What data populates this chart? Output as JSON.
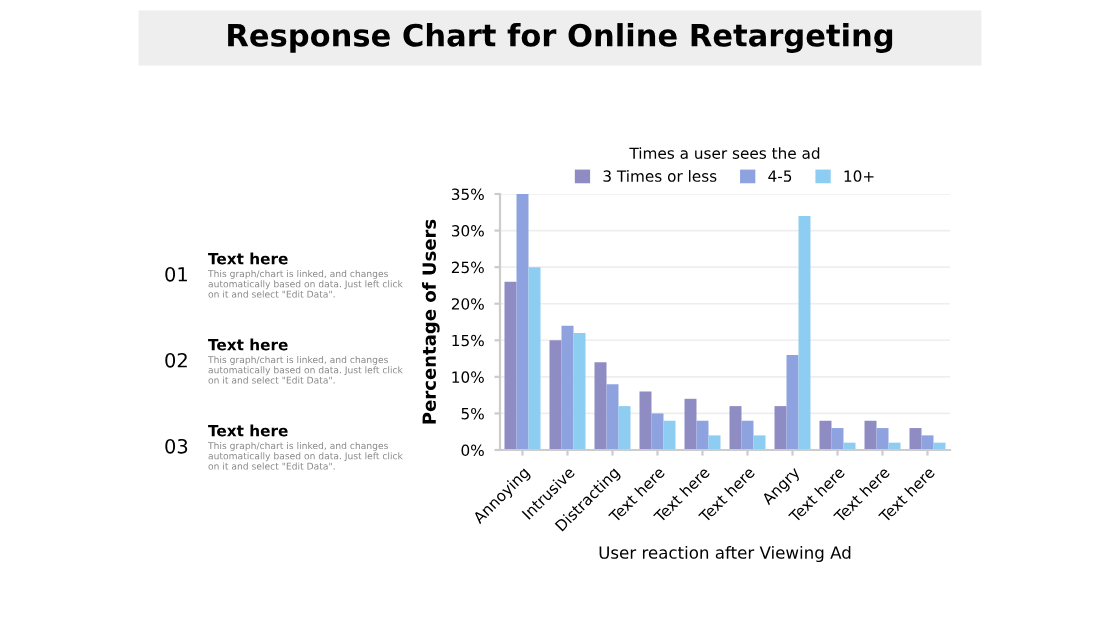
{
  "chart_data": {
    "type": "bar",
    "title": "Response Chart for Online Retargeting",
    "xlabel": "User reaction after Viewing Ad",
    "ylabel": "Percentage of Users",
    "legend_title": "Times a user sees the ad",
    "categories": [
      "Annoying",
      "Intrusive",
      "Distracting",
      "Text here",
      "Text here",
      "Text here",
      "Angry",
      "Text here",
      "Text here",
      "Text here"
    ],
    "series": [
      {
        "name": "3 Times or less",
        "color": "#8e8cc2",
        "values": [
          23,
          15,
          12,
          8,
          7,
          6,
          6,
          4,
          4,
          3
        ]
      },
      {
        "name": "4-5",
        "color": "#8ea2e0",
        "values": [
          35,
          17,
          9,
          5,
          4,
          4,
          13,
          3,
          3,
          2
        ]
      },
      {
        "name": "10+",
        "color": "#8ecdf2",
        "values": [
          25,
          16,
          6,
          4,
          2,
          2,
          32,
          1,
          1,
          1
        ]
      }
    ],
    "ylim": [
      0,
      35
    ],
    "yticks": [
      {
        "value": 0,
        "label": "0%"
      },
      {
        "value": 5,
        "label": "5%"
      },
      {
        "value": 10,
        "label": "10%"
      },
      {
        "value": 15,
        "label": "15%"
      },
      {
        "value": 20,
        "label": "20%"
      },
      {
        "value": 25,
        "label": "25%"
      },
      {
        "value": 30,
        "label": "30%"
      },
      {
        "value": 35,
        "label": "35%"
      }
    ],
    "grid": "y",
    "legend": "top",
    "annotations": [
      "01",
      "Text here",
      "This graph/chart is linked, and changes automatically based on data. Just left click on it and select \"Edit Data\".",
      "02",
      "Text here",
      "This graph/chart is linked, and changes automatically based on data. Just left click on it and select \"Edit Data\".",
      "03",
      "Text here",
      "This graph/chart is linked, and changes automatically based on data. Just left click on it and select \"Edit Data\"."
    ]
  }
}
